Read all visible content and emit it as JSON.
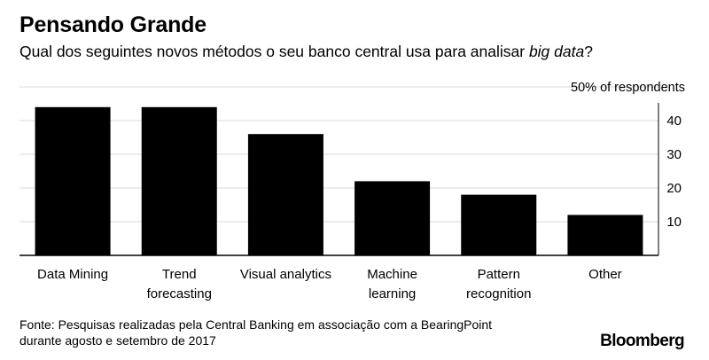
{
  "header": {
    "title": "Pensando Grande",
    "subtitle_prefix": "Qual dos seguintes novos métodos o seu banco central usa para analisar ",
    "subtitle_emphasis": "big data",
    "subtitle_suffix": "?"
  },
  "chart_data": {
    "type": "bar",
    "categories": [
      [
        "Data Mining"
      ],
      [
        "Trend",
        "forecasting"
      ],
      [
        "Visual analytics"
      ],
      [
        "Machine",
        "learning"
      ],
      [
        "Pattern",
        "recognition"
      ],
      [
        "Other"
      ]
    ],
    "values": [
      44,
      44,
      36,
      22,
      18,
      12
    ],
    "ylim": [
      0,
      50
    ],
    "yticks": [
      10,
      20,
      30,
      40
    ],
    "top_label": "50% of respondents",
    "yaxis_side": "right",
    "grid": true,
    "bar_color": "#000000",
    "grid_color": "#d9d9d9"
  },
  "footer": {
    "source_line1": "Fonte: Pesquisas realizadas pela Central Banking em associação com a BearingPoint",
    "source_line2": "durante agosto e setembro de 2017",
    "brand": "Bloomberg"
  }
}
